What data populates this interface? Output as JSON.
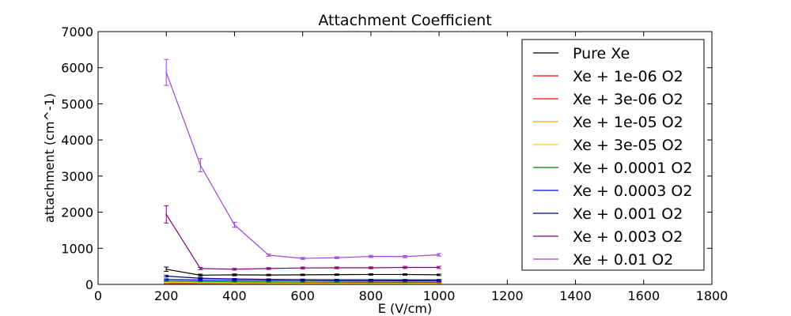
{
  "chart_data": {
    "type": "line",
    "title": "Attachment Coefficient",
    "xlabel": "E (V/cm)",
    "ylabel": "attachment (cm^-1)",
    "xlim": [
      0,
      1800
    ],
    "ylim": [
      0,
      7000
    ],
    "xticks": [
      0,
      200,
      400,
      600,
      800,
      1000,
      1200,
      1400,
      1600,
      1800
    ],
    "yticks": [
      0,
      1000,
      2000,
      3000,
      4000,
      5000,
      6000,
      7000
    ],
    "grid": false,
    "legend_position": "top-right",
    "series": [
      {
        "name": "Pure Xe",
        "color": "#000000",
        "x": [
          200,
          300,
          400,
          500,
          600,
          700,
          800,
          900,
          1000
        ],
        "y": [
          420,
          255,
          265,
          260,
          265,
          270,
          275,
          275,
          265
        ],
        "err": [
          60,
          30,
          25,
          20,
          20,
          20,
          20,
          20,
          20
        ]
      },
      {
        "name": "Xe + 1e-06 O2",
        "color": "#ff0000",
        "x": [
          200,
          300,
          400,
          500,
          600,
          700,
          800,
          900,
          1000
        ],
        "y": [
          15,
          12,
          10,
          10,
          10,
          10,
          10,
          10,
          10
        ],
        "err": [
          5,
          4,
          3,
          3,
          3,
          3,
          3,
          3,
          3
        ]
      },
      {
        "name": "Xe + 3e-06 O2",
        "color": "#ff0000",
        "x": [
          200,
          300,
          400,
          500,
          600,
          700,
          800,
          900,
          1000
        ],
        "y": [
          25,
          20,
          18,
          17,
          16,
          16,
          15,
          15,
          15
        ],
        "err": [
          6,
          5,
          4,
          4,
          4,
          4,
          4,
          4,
          4
        ]
      },
      {
        "name": "Xe + 1e-05 O2",
        "color": "#ffa500",
        "x": [
          200,
          300,
          400,
          500,
          600,
          700,
          800,
          900,
          1000
        ],
        "y": [
          45,
          38,
          32,
          30,
          28,
          27,
          26,
          25,
          25
        ],
        "err": [
          8,
          6,
          5,
          5,
          5,
          5,
          5,
          5,
          5
        ]
      },
      {
        "name": "Xe + 3e-05 O2",
        "color": "#ffd700",
        "x": [
          200,
          300,
          400,
          500,
          600,
          700,
          800,
          900,
          1000
        ],
        "y": [
          70,
          58,
          50,
          46,
          43,
          41,
          40,
          39,
          38
        ],
        "err": [
          10,
          8,
          7,
          6,
          6,
          6,
          6,
          6,
          6
        ]
      },
      {
        "name": "Xe + 0.0001 O2",
        "color": "#008000",
        "x": [
          200,
          300,
          400,
          500,
          600,
          700,
          800,
          900,
          1000
        ],
        "y": [
          95,
          80,
          70,
          65,
          62,
          60,
          58,
          57,
          56
        ],
        "err": [
          12,
          10,
          9,
          8,
          8,
          8,
          8,
          8,
          8
        ]
      },
      {
        "name": "Xe + 0.0003 O2",
        "color": "#0000ff",
        "x": [
          200,
          300,
          400,
          500,
          600,
          700,
          800,
          900,
          1000
        ],
        "y": [
          140,
          120,
          110,
          105,
          100,
          98,
          96,
          95,
          93
        ],
        "err": [
          15,
          12,
          10,
          10,
          10,
          10,
          10,
          10,
          10
        ]
      },
      {
        "name": "Xe + 0.001 O2",
        "color": "#000080",
        "x": [
          200,
          300,
          400,
          500,
          600,
          700,
          800,
          900,
          1000
        ],
        "y": [
          230,
          170,
          150,
          140,
          135,
          130,
          128,
          126,
          125
        ],
        "err": [
          25,
          18,
          15,
          14,
          13,
          13,
          13,
          13,
          13
        ]
      },
      {
        "name": "Xe + 0.003 O2",
        "color": "#800080",
        "x": [
          200,
          300,
          400,
          500,
          600,
          700,
          800,
          900,
          1000
        ],
        "y": [
          1940,
          440,
          420,
          440,
          455,
          460,
          460,
          470,
          470
        ],
        "err": [
          240,
          30,
          25,
          25,
          25,
          25,
          25,
          30,
          30
        ]
      },
      {
        "name": "Xe + 0.01 O2",
        "color": "#a040e0",
        "x": [
          200,
          300,
          400,
          500,
          600,
          700,
          800,
          900,
          1000
        ],
        "y": [
          5870,
          3300,
          1650,
          810,
          720,
          740,
          775,
          770,
          820
        ],
        "err": [
          360,
          180,
          70,
          30,
          25,
          25,
          30,
          30,
          35
        ]
      }
    ]
  }
}
